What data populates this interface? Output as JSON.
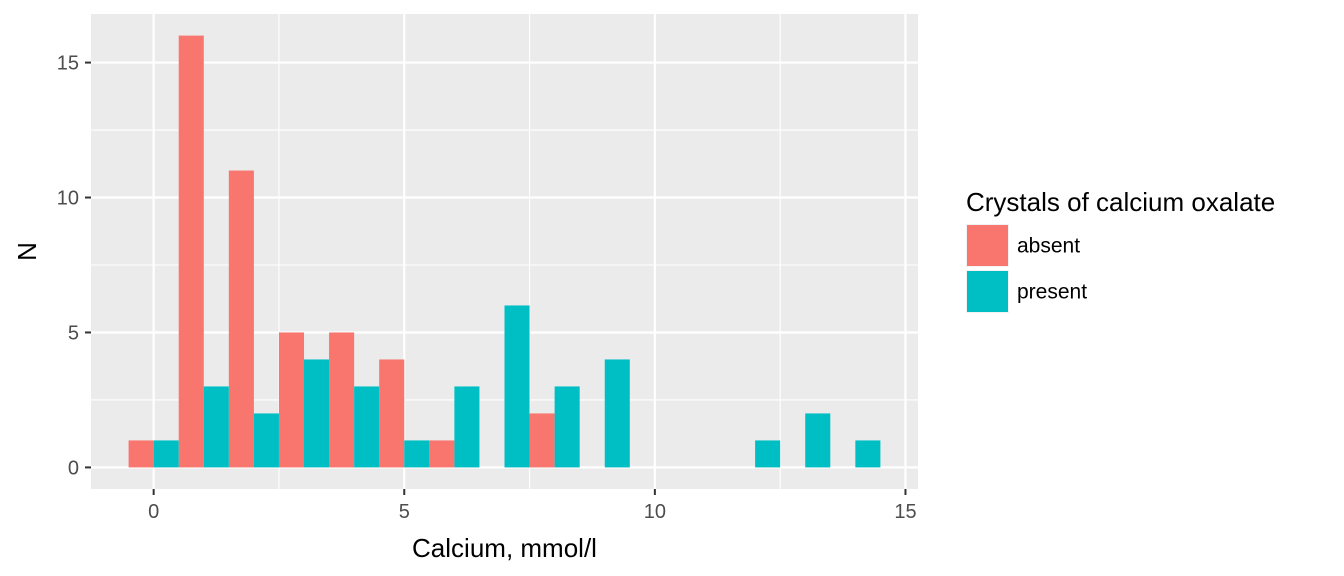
{
  "chart_data": {
    "type": "bar",
    "layout": "dodged-histogram",
    "bin_width": 1,
    "x": [
      0,
      1,
      2,
      3,
      4,
      5,
      6,
      7,
      8,
      9,
      10,
      11,
      12,
      13,
      14
    ],
    "series": [
      {
        "name": "absent",
        "color": "#F8766D",
        "values": [
          1,
          16,
          11,
          5,
          5,
          4,
          1,
          0,
          2,
          0,
          0,
          0,
          0,
          0,
          0
        ]
      },
      {
        "name": "present",
        "color": "#00BFC4",
        "values": [
          1,
          3,
          2,
          4,
          3,
          1,
          3,
          6,
          3,
          4,
          0,
          0,
          1,
          2,
          1
        ]
      }
    ],
    "title": "",
    "xlabel": "Calcium, mmol/l",
    "ylabel": "N",
    "xlim": [
      -1.25,
      15.25
    ],
    "ylim": [
      -0.8,
      16.8
    ],
    "x_ticks": [
      0,
      5,
      10,
      15
    ],
    "y_ticks": [
      0,
      5,
      10,
      15
    ],
    "grid": true,
    "panel_background": "#EBEBEB",
    "grid_color": "#FFFFFF",
    "legend": {
      "title": "Crystals of calcium oxalate",
      "position": "right",
      "entries": [
        "absent",
        "present"
      ]
    }
  }
}
